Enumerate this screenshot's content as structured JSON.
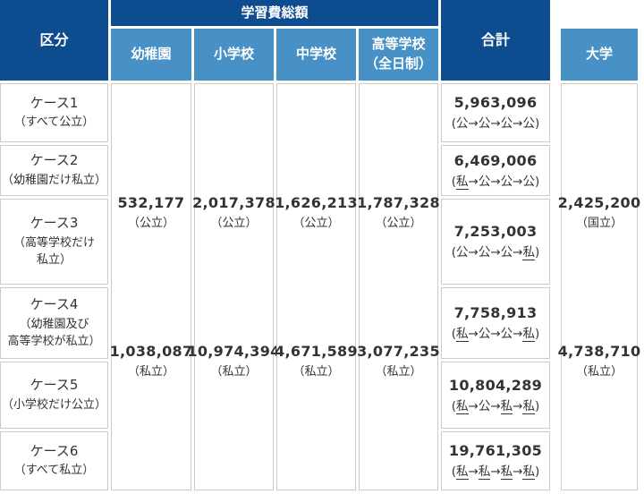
{
  "colors": {
    "header_dark": "#0d4d8f",
    "header_light": "#4791c6",
    "border": "#cbcbcb",
    "text": "#333333"
  },
  "main_table": {
    "corner_header": "区分",
    "group_header": "学習費総額",
    "total_header": "合計",
    "route_arrow": "→",
    "school_columns": [
      {
        "id": "yochien",
        "label_lines": [
          "幼稚園"
        ],
        "public_value": "532,177",
        "public_note": "（公立）",
        "private_value": "1,038,087",
        "private_note": "（私立）"
      },
      {
        "id": "shogakko",
        "label_lines": [
          "小学校"
        ],
        "public_value": "2,017,378",
        "public_note": "（公立）",
        "private_value": "10,974,394",
        "private_note": "（私立）"
      },
      {
        "id": "chugakko",
        "label_lines": [
          "中学校"
        ],
        "public_value": "1,626,213",
        "public_note": "（公立）",
        "private_value": "4,671,589",
        "private_note": "（私立）"
      },
      {
        "id": "kotogakko",
        "label_lines": [
          "高等学校",
          "（全日制）"
        ],
        "public_value": "1,787,328",
        "public_note": "（公立）",
        "private_value": "3,077,235",
        "private_note": "（私立）"
      }
    ],
    "case_rows": [
      {
        "id": "case-1",
        "case": "ケース1",
        "desc_lines": [
          "（すべて公立）"
        ],
        "total": "5,963,096",
        "route": [
          {
            "t": "公",
            "u": false
          },
          {
            "t": "公",
            "u": false
          },
          {
            "t": "公",
            "u": false
          },
          {
            "t": "公",
            "u": false
          }
        ]
      },
      {
        "id": "case-2",
        "case": "ケース2",
        "desc_lines": [
          "（幼稚園だけ私立）"
        ],
        "total": "6,469,006",
        "route": [
          {
            "t": "私",
            "u": true
          },
          {
            "t": "公",
            "u": false
          },
          {
            "t": "公",
            "u": false
          },
          {
            "t": "公",
            "u": false
          }
        ]
      },
      {
        "id": "case-3",
        "case": "ケース3",
        "desc_lines": [
          "（高等学校だけ",
          "私立）"
        ],
        "total": "7,253,003",
        "route": [
          {
            "t": "公",
            "u": false
          },
          {
            "t": "公",
            "u": false
          },
          {
            "t": "公",
            "u": false
          },
          {
            "t": "私",
            "u": true
          }
        ]
      },
      {
        "id": "case-4",
        "case": "ケース4",
        "desc_lines": [
          "（幼稚園及び",
          "高等学校が私立）"
        ],
        "total": "7,758,913",
        "route": [
          {
            "t": "私",
            "u": true
          },
          {
            "t": "公",
            "u": false
          },
          {
            "t": "公",
            "u": false
          },
          {
            "t": "私",
            "u": true
          }
        ]
      },
      {
        "id": "case-5",
        "case": "ケース5",
        "desc_lines": [
          "（小学校だけ公立）"
        ],
        "total": "10,804,289",
        "route": [
          {
            "t": "私",
            "u": true
          },
          {
            "t": "公",
            "u": false
          },
          {
            "t": "私",
            "u": true
          },
          {
            "t": "私",
            "u": true
          }
        ]
      },
      {
        "id": "case-6",
        "case": "ケース6",
        "desc_lines": [
          "（すべて私立）"
        ],
        "total": "19,761,305",
        "route": [
          {
            "t": "私",
            "u": true
          },
          {
            "t": "私",
            "u": true
          },
          {
            "t": "私",
            "u": true
          },
          {
            "t": "私",
            "u": true
          }
        ]
      }
    ]
  },
  "university_table": {
    "header": "大学",
    "national_value": "2,425,200",
    "national_note": "（国立）",
    "private_value": "4,738,710",
    "private_note": "（私立）"
  },
  "chart_data": {
    "type": "table",
    "title": "学習費総額",
    "columns": [
      "区分",
      "幼稚園",
      "小学校",
      "中学校",
      "高等学校（全日制）",
      "合計",
      "大学"
    ],
    "school_costs": {
      "幼稚園": {
        "公立": 532177,
        "私立": 1038087
      },
      "小学校": {
        "公立": 2017378,
        "私立": 10974394
      },
      "中学校": {
        "公立": 1626213,
        "私立": 4671589
      },
      "高等学校（全日制）": {
        "公立": 1787328,
        "私立": 3077235
      }
    },
    "case_totals": [
      {
        "case": "ケース1",
        "desc": "すべて公立",
        "route": "公→公→公→公",
        "total": 5963096
      },
      {
        "case": "ケース2",
        "desc": "幼稚園だけ私立",
        "route": "私→公→公→公",
        "total": 6469006
      },
      {
        "case": "ケース3",
        "desc": "高等学校だけ私立",
        "route": "公→公→公→私",
        "total": 7253003
      },
      {
        "case": "ケース4",
        "desc": "幼稚園及び高等学校が私立",
        "route": "私→公→公→私",
        "total": 7758913
      },
      {
        "case": "ケース5",
        "desc": "小学校だけ公立",
        "route": "私→公→私→私",
        "total": 10804289
      },
      {
        "case": "ケース6",
        "desc": "すべて私立",
        "route": "私→私→私→私",
        "total": 19761305
      }
    ],
    "university_costs": {
      "国立": 2425200,
      "私立": 4738710
    }
  }
}
